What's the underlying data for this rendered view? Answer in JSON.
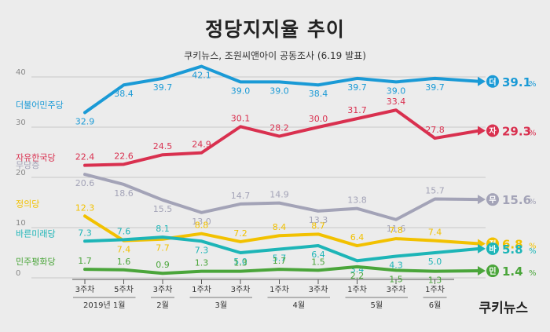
{
  "title": "정당지지율 추이",
  "subtitle": "쿠키뉴스, 조원씨앤아이 공동조사 (6.19 발표)",
  "brand": "쿠키뉴스",
  "chart_data": {
    "type": "line",
    "ylim": [
      0,
      40
    ],
    "yticks": [
      "0",
      "10",
      "20",
      "30",
      "40"
    ],
    "grid": true,
    "categories": [
      "3주차",
      "5주차",
      "3주차",
      "1주차",
      "3주차",
      "1주차",
      "3주차",
      "1주차",
      "3주차",
      "1주차"
    ],
    "month_labels": [
      {
        "label": "2019년 1월",
        "from": 0,
        "to": 1
      },
      {
        "label": "2월",
        "from": 2,
        "to": 2
      },
      {
        "label": "3월",
        "from": 3,
        "to": 4
      },
      {
        "label": "4월",
        "from": 5,
        "to": 6
      },
      {
        "label": "5월",
        "from": 7,
        "to": 8
      },
      {
        "label": "6월",
        "from": 9,
        "to": 9
      }
    ],
    "series": [
      {
        "name": "더불어민주당",
        "badge": "더",
        "color": "#1a9ad6",
        "values": [
          32.9,
          38.4,
          39.7,
          42.1,
          39.0,
          39.0,
          38.4,
          39.7,
          39.0,
          39.7
        ],
        "labels": [
          "32.9",
          "38.4",
          "39.7",
          "42.1",
          "39.0",
          "39.0",
          "38.4",
          "39.7",
          "39.0",
          "39.7"
        ],
        "final": 39.1,
        "final_label": "39.1",
        "label_pos": [
          "below",
          "below",
          "below",
          "below",
          "below",
          "below",
          "below",
          "below",
          "below",
          "below"
        ]
      },
      {
        "name": "자유한국당",
        "badge": "자",
        "color": "#d9304f",
        "values": [
          22.4,
          22.6,
          24.5,
          24.9,
          30.1,
          28.2,
          30.0,
          31.7,
          33.4,
          27.8
        ],
        "labels": [
          "22.4",
          "22.6",
          "24.5",
          "24.9",
          "30.1",
          "28.2",
          "30.0",
          "31.7",
          "33.4",
          "27.8"
        ],
        "final": 29.3,
        "final_label": "29.3",
        "label_pos": [
          "above",
          "above",
          "above",
          "above",
          "above",
          "above",
          "above",
          "above",
          "above",
          "above"
        ]
      },
      {
        "name": "무당층",
        "badge": "무",
        "color": "#a3a3b7",
        "values": [
          20.6,
          18.6,
          15.5,
          13.0,
          14.7,
          14.9,
          13.3,
          13.8,
          11.6,
          15.7
        ],
        "labels": [
          "20.6",
          "18.6",
          "15.5",
          "13.0",
          "14.7",
          "14.9",
          "13.3",
          "13.8",
          "11.6",
          "15.7"
        ],
        "final": 15.6,
        "final_label": "15.6",
        "label_pos": [
          "below",
          "below",
          "below",
          "below",
          "above",
          "above",
          "below",
          "above",
          "below",
          "above"
        ]
      },
      {
        "name": "정의당",
        "badge": "정",
        "color": "#f2c100",
        "values": [
          12.3,
          7.4,
          7.7,
          8.8,
          7.2,
          8.4,
          8.7,
          6.4,
          7.8,
          7.4
        ],
        "labels": [
          "12.3",
          "7.4",
          "7.7",
          "8.8",
          "7.2",
          "8.4",
          "8.7",
          "6.4",
          "7.8",
          "7.4"
        ],
        "final": 6.8,
        "final_label": "6.8",
        "label_pos": [
          "above",
          "below",
          "below",
          "above",
          "above",
          "above",
          "above",
          "above",
          "above",
          "above"
        ]
      },
      {
        "name": "바른미래당",
        "badge": "바",
        "color": "#1db5b7",
        "values": [
          7.3,
          7.6,
          8.1,
          7.3,
          5.0,
          5.7,
          6.4,
          3.4,
          4.3,
          5.0
        ],
        "labels": [
          "7.3",
          "7.6",
          "8.1",
          "7.3",
          "5.0",
          "5.7",
          "6.4",
          "3.4",
          "4.3",
          "5.0"
        ],
        "final": 5.8,
        "final_label": "5.8",
        "label_pos": [
          "above",
          "above",
          "above",
          "below",
          "below",
          "below",
          "below",
          "below",
          "below",
          "below"
        ]
      },
      {
        "name": "민주평화당",
        "badge": "민",
        "color": "#4aa53a",
        "values": [
          1.7,
          1.6,
          0.9,
          1.3,
          1.3,
          1.7,
          1.5,
          2.2,
          1.5,
          1.3
        ],
        "labels": [
          "1.7",
          "1.6",
          "0.9",
          "1.3",
          "1.3",
          "1.7",
          "1.5",
          "2.2",
          "1.5",
          "1.3"
        ],
        "final": 1.4,
        "final_label": "1.4",
        "label_pos": [
          "above",
          "above",
          "above",
          "above",
          "above",
          "above",
          "above",
          "below",
          "below",
          "below"
        ]
      }
    ]
  }
}
